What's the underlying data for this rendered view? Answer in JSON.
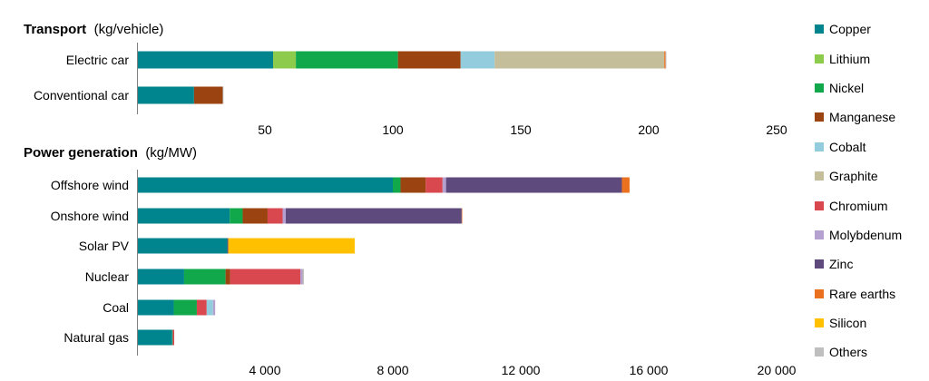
{
  "chart_data": [
    {
      "type": "bar",
      "orientation": "horizontal",
      "stacked": true,
      "title": "Transport",
      "unit": "(kg/vehicle)",
      "categories": [
        "Electric car",
        "Conventional car"
      ],
      "xlim": [
        0,
        250
      ],
      "xticks": [
        "50",
        "100",
        "150",
        "200",
        "250"
      ],
      "series": [
        {
          "name": "Copper",
          "values": [
            53.2,
            22.3
          ]
        },
        {
          "name": "Lithium",
          "values": [
            8.9,
            0
          ]
        },
        {
          "name": "Nickel",
          "values": [
            39.9,
            0
          ]
        },
        {
          "name": "Manganese",
          "values": [
            24.5,
            11.2
          ]
        },
        {
          "name": "Cobalt",
          "values": [
            13.3,
            0
          ]
        },
        {
          "name": "Graphite",
          "values": [
            66.3,
            0
          ]
        },
        {
          "name": "Chromium",
          "values": [
            0,
            0
          ]
        },
        {
          "name": "Molybdenum",
          "values": [
            0,
            0
          ]
        },
        {
          "name": "Zinc",
          "values": [
            0,
            0
          ]
        },
        {
          "name": "Rare earths",
          "values": [
            0.5,
            0
          ]
        },
        {
          "name": "Silicon",
          "values": [
            0,
            0
          ]
        },
        {
          "name": "Others",
          "values": [
            0.3,
            0.3
          ]
        }
      ]
    },
    {
      "type": "bar",
      "orientation": "horizontal",
      "stacked": true,
      "title": "Power generation",
      "unit": "(kg/MW)",
      "categories": [
        "Offshore wind",
        "Onshore wind",
        "Solar PV",
        "Nuclear",
        "Coal",
        "Natural gas"
      ],
      "xlim": [
        0,
        20000
      ],
      "xticks": [
        "4 000",
        "8 000",
        "12 000",
        "16 000",
        "20 000"
      ],
      "series": [
        {
          "name": "Copper",
          "values": [
            8000,
            2900,
            2822,
            1473,
            1150,
            1100
          ]
        },
        {
          "name": "Lithium",
          "values": [
            0,
            0,
            0,
            0,
            0,
            0
          ]
        },
        {
          "name": "Nickel",
          "values": [
            240,
            404,
            1,
            1297,
            721,
            16
          ]
        },
        {
          "name": "Manganese",
          "values": [
            790,
            780,
            0,
            148,
            0,
            0
          ]
        },
        {
          "name": "Chromium",
          "values": [
            525,
            470,
            0,
            2190,
            308,
            48
          ]
        },
        {
          "name": "Cobalt",
          "values": [
            0,
            0,
            0,
            0,
            200,
            0
          ]
        },
        {
          "name": "Molybdenum",
          "values": [
            109,
            99,
            0,
            70,
            66,
            0
          ]
        },
        {
          "name": "Zinc",
          "values": [
            5500,
            5500,
            30,
            0,
            0,
            0
          ]
        },
        {
          "name": "Rare earths",
          "values": [
            239,
            14,
            0,
            0.5,
            0,
            0
          ]
        },
        {
          "name": "Silicon",
          "values": [
            0,
            0,
            3955,
            0,
            0,
            0
          ]
        },
        {
          "name": "Others",
          "values": [
            0,
            0,
            0,
            40,
            0,
            0
          ]
        }
      ]
    }
  ],
  "legend": [
    {
      "name": "Copper",
      "color": "#00858F"
    },
    {
      "name": "Lithium",
      "color": "#8DCB4C"
    },
    {
      "name": "Nickel",
      "color": "#10A84A"
    },
    {
      "name": "Manganese",
      "color": "#9B4411"
    },
    {
      "name": "Cobalt",
      "color": "#93CDDD"
    },
    {
      "name": "Graphite",
      "color": "#C4BE9B"
    },
    {
      "name": "Chromium",
      "color": "#D9474F"
    },
    {
      "name": "Molybdenum",
      "color": "#B4A1CF"
    },
    {
      "name": "Zinc",
      "color": "#5F4A7D"
    },
    {
      "name": "Rare earths",
      "color": "#EA7120"
    },
    {
      "name": "Silicon",
      "color": "#FFC000"
    },
    {
      "name": "Others",
      "color": "#BFBFBF"
    }
  ]
}
